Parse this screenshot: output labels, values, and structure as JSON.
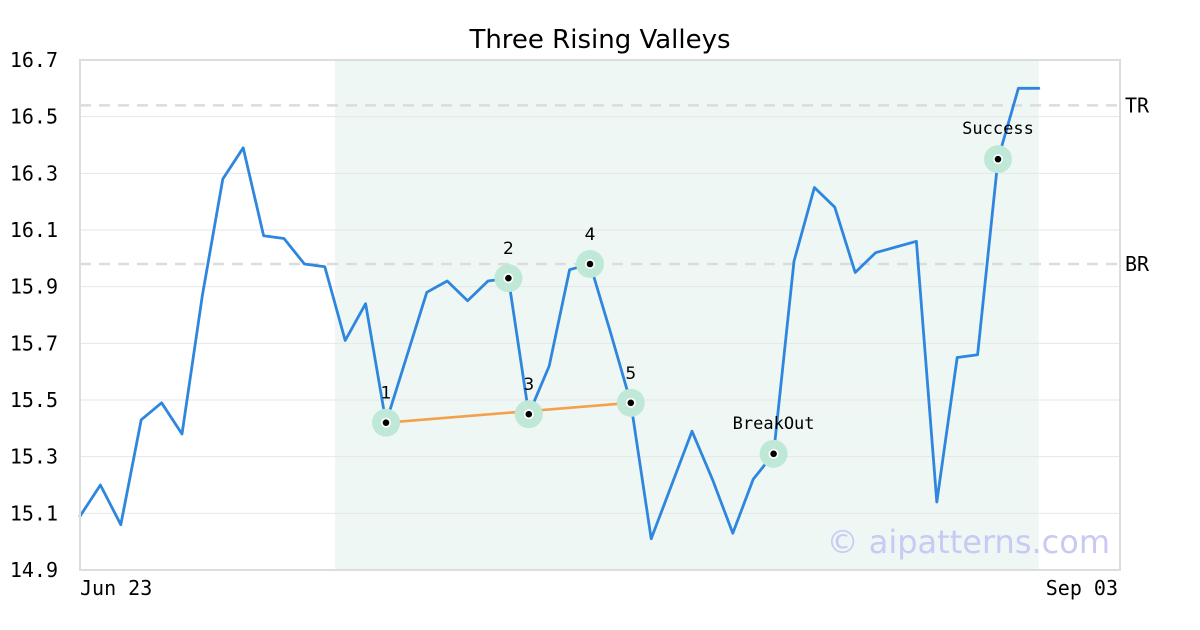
{
  "chart_data": {
    "type": "line",
    "title": "Three Rising Valleys",
    "ylim": [
      14.9,
      16.7
    ],
    "yticks": [
      "14.9",
      "15.1",
      "15.3",
      "15.5",
      "15.7",
      "15.9",
      "16.1",
      "16.3",
      "16.5",
      "16.7"
    ],
    "xtick_labels": [
      "Jun 23",
      "Sep 03"
    ],
    "grid": "horizontal",
    "series": [
      {
        "color": "#2f86de",
        "values": [
          15.09,
          15.2,
          15.06,
          15.43,
          15.49,
          15.38,
          15.87,
          16.28,
          16.39,
          16.08,
          16.07,
          15.98,
          15.97,
          15.71,
          15.84,
          15.42,
          15.65,
          15.88,
          15.92,
          15.85,
          15.92,
          15.93,
          15.45,
          15.62,
          15.96,
          15.98,
          15.74,
          15.49,
          15.01,
          15.2,
          15.39,
          15.22,
          15.03,
          15.22,
          15.31,
          15.99,
          16.25,
          16.18,
          15.95,
          16.02,
          16.04,
          16.06,
          15.14,
          15.65,
          15.66,
          16.35,
          16.6,
          16.6
        ]
      }
    ],
    "pattern_region": {
      "start_index": 13,
      "end_index": 47,
      "color": "#eef7f3"
    },
    "reference_lines": [
      {
        "label": "TR",
        "value": 16.54
      },
      {
        "label": "BR",
        "value": 15.98
      }
    ],
    "pattern_points": [
      {
        "label": "1",
        "index": 15,
        "value": 15.42
      },
      {
        "label": "2",
        "index": 21,
        "value": 15.93
      },
      {
        "label": "3",
        "index": 22,
        "value": 15.45
      },
      {
        "label": "4",
        "index": 25,
        "value": 15.98
      },
      {
        "label": "5",
        "index": 27,
        "value": 15.49
      }
    ],
    "valley_line": {
      "color": "#f5a04a",
      "from_index": 15,
      "to_index": 27
    },
    "annotations": [
      {
        "label": "BreakOut",
        "index": 34,
        "value": 15.31
      },
      {
        "label": "Success",
        "index": 45,
        "value": 16.35
      }
    ],
    "watermark": "© aipatterns.com"
  }
}
